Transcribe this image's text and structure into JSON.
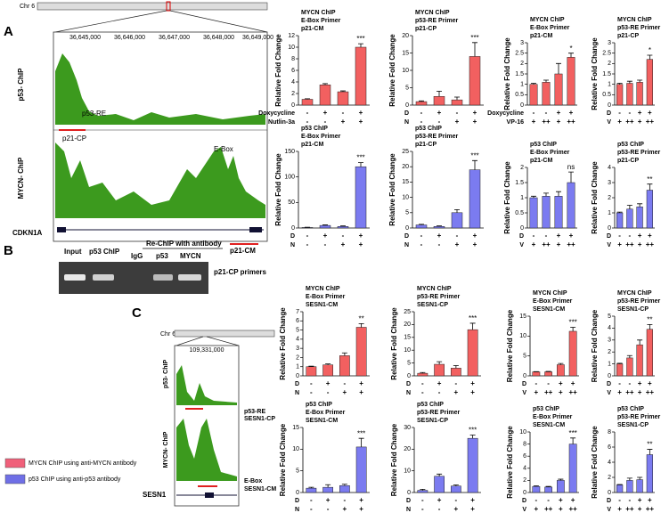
{
  "figure": {
    "panel_labels": [
      "A",
      "B",
      "C"
    ],
    "browser_a": {
      "chrom": "Chr 6",
      "coords": [
        "36,645,000",
        "36,646,000",
        "36,647,000",
        "36,648,000",
        "36,649,000"
      ],
      "tracks": [
        "p53- ChIP",
        "MYCN- ChIP"
      ],
      "features": [
        "p53-RE",
        "p21-CP",
        "E-Box",
        "p21-CM"
      ],
      "gene": "CDKN1A"
    },
    "gel": {
      "lanes": [
        "Input",
        "p53 ChIP",
        "IgG",
        "p53",
        "MYCN"
      ],
      "group": "Re-ChIP with antibody",
      "primer": "p21-CP primers"
    },
    "browser_c": {
      "chrom": "Chr 6",
      "coords": [
        "109,331,000"
      ],
      "tracks": [
        "p53- ChIP",
        "MYCN- ChIP"
      ],
      "features": [
        "p53-RE",
        "SESN1-CP",
        "E-Box",
        "SESN1-CM"
      ],
      "gene": "SESN1"
    },
    "legend": [
      {
        "label": "MYCN ChIP using anti-MYCN antibody",
        "color": "#f0607a"
      },
      {
        "label": "p53 ChIP using anti-p53 antibody",
        "color": "#6f6fe6"
      }
    ]
  },
  "chart_data": [
    {
      "type": "bar",
      "title": [
        "MYCN ChIP",
        "E-Box Primer",
        "p21-CM"
      ],
      "y_label": "Relative Fold Change",
      "values": [
        1,
        3.5,
        2.3,
        10
      ],
      "errors": [
        0.1,
        0.2,
        0.15,
        0.6
      ],
      "color": "#f26060",
      "ylim": [
        0,
        12
      ],
      "yticks": [
        0,
        2,
        4,
        6,
        8,
        10,
        12
      ],
      "annotation": "***",
      "conditions": [
        {
          "name": "Doxycycline",
          "labels": [
            "-",
            "+",
            "-",
            "+"
          ]
        },
        {
          "name": "Nutlin-3a",
          "labels": [
            "-",
            "-",
            "+",
            "+"
          ]
        }
      ]
    },
    {
      "type": "bar",
      "title": [
        "MYCN ChIP",
        "p53-RE Primer",
        "p21-CP"
      ],
      "y_label": "Relative Fold Change",
      "values": [
        1,
        2.5,
        1.5,
        14
      ],
      "errors": [
        0.2,
        1.5,
        0.8,
        4
      ],
      "color": "#f26060",
      "ylim": [
        0,
        20
      ],
      "yticks": [
        0,
        5,
        10,
        15,
        20
      ],
      "annotation": "***",
      "conditions": [
        {
          "name": "D",
          "labels": [
            "-",
            "+",
            "-",
            "+"
          ]
        },
        {
          "name": "N",
          "labels": [
            "-",
            "-",
            "+",
            "+"
          ]
        }
      ]
    },
    {
      "type": "bar",
      "title": [
        "MYCN ChIP",
        "E-Box Primer",
        "p21-CM"
      ],
      "y_label": "Relative Fold Change",
      "values": [
        1,
        1.1,
        1.5,
        2.3
      ],
      "errors": [
        0.05,
        0.1,
        0.5,
        0.2
      ],
      "color": "#f26060",
      "ylim": [
        0,
        3
      ],
      "yticks": [
        0,
        0.5,
        1,
        1.5,
        2,
        2.5,
        3
      ],
      "annotation": "*",
      "conditions": [
        {
          "name": "Doxycycline",
          "labels": [
            "-",
            "-",
            "+",
            "+"
          ]
        },
        {
          "name": "VP-16",
          "labels": [
            "+",
            "++",
            "+",
            "++"
          ]
        }
      ]
    },
    {
      "type": "bar",
      "title": [
        "MYCN ChIP",
        "p53-RE Primer",
        "p21-CP"
      ],
      "y_label": "Relative Fold Change",
      "values": [
        1,
        1.05,
        1.1,
        2.2
      ],
      "errors": [
        0.05,
        0.1,
        0.1,
        0.2
      ],
      "color": "#f26060",
      "ylim": [
        0,
        3
      ],
      "yticks": [
        0,
        0.5,
        1,
        1.5,
        2,
        2.5,
        3
      ],
      "annotation": "*",
      "conditions": [
        {
          "name": "D",
          "labels": [
            "-",
            "-",
            "+",
            "+"
          ]
        },
        {
          "name": "V",
          "labels": [
            "+",
            "++",
            "+",
            "++"
          ]
        }
      ]
    },
    {
      "type": "bar",
      "title": [
        "p53 ChIP",
        "E-Box Primer",
        "p21-CM"
      ],
      "y_label": "Relative Fold Change",
      "values": [
        1,
        5,
        3,
        120
      ],
      "errors": [
        0.5,
        1,
        1,
        8
      ],
      "color": "#7b7bf0",
      "ylim": [
        0,
        150
      ],
      "yticks": [
        0,
        50,
        100,
        150
      ],
      "annotation": "***",
      "conditions": [
        {
          "name": "D",
          "labels": [
            "-",
            "+",
            "-",
            "+"
          ]
        },
        {
          "name": "N",
          "labels": [
            "-",
            "-",
            "+",
            "+"
          ]
        }
      ]
    },
    {
      "type": "bar",
      "title": [
        "p53 ChIP",
        "p53-RE Primer",
        "p21-CP"
      ],
      "y_label": "Relative Fold Change",
      "values": [
        1,
        0.5,
        5,
        19
      ],
      "errors": [
        0.2,
        0.2,
        1,
        3
      ],
      "color": "#7b7bf0",
      "ylim": [
        0,
        25
      ],
      "yticks": [
        0,
        5,
        10,
        15,
        20,
        25
      ],
      "annotation": "***",
      "conditions": [
        {
          "name": "D",
          "labels": [
            "-",
            "+",
            "-",
            "+"
          ]
        },
        {
          "name": "N",
          "labels": [
            "-",
            "-",
            "+",
            "+"
          ]
        }
      ]
    },
    {
      "type": "bar",
      "title": [
        "p53 ChIP",
        "E-Box Primer",
        "p21-CM"
      ],
      "y_label": "Relative Fold Change",
      "values": [
        1,
        1.05,
        1.05,
        1.5
      ],
      "errors": [
        0.05,
        0.1,
        0.15,
        0.35
      ],
      "color": "#7b7bf0",
      "ylim": [
        0,
        2
      ],
      "yticks": [
        0,
        0.5,
        1,
        1.5,
        2
      ],
      "annotation": "ns",
      "conditions": [
        {
          "name": "D",
          "labels": [
            "-",
            "-",
            "+",
            "+"
          ]
        },
        {
          "name": "V",
          "labels": [
            "+",
            "++",
            "+",
            "++"
          ]
        }
      ]
    },
    {
      "type": "bar",
      "title": [
        "p53 ChIP",
        "p53-RE Primer",
        "p21-CP"
      ],
      "y_label": "Relative Fold Change",
      "values": [
        1,
        1.25,
        1.4,
        2.5
      ],
      "errors": [
        0.05,
        0.25,
        0.2,
        0.4
      ],
      "color": "#7b7bf0",
      "ylim": [
        0,
        4
      ],
      "yticks": [
        0,
        1,
        2,
        3,
        4
      ],
      "annotation": "**",
      "conditions": [
        {
          "name": "D",
          "labels": [
            "-",
            "-",
            "+",
            "+"
          ]
        },
        {
          "name": "V",
          "labels": [
            "+",
            "++",
            "+",
            "++"
          ]
        }
      ]
    },
    {
      "type": "bar",
      "title": [
        "MYCN ChIP",
        "E-Box Primer",
        "SESN1-CM"
      ],
      "y_label": "Relative Fold Change",
      "values": [
        1,
        1.2,
        2.2,
        5.3
      ],
      "errors": [
        0.05,
        0.1,
        0.3,
        0.4
      ],
      "color": "#f26060",
      "ylim": [
        0,
        7
      ],
      "yticks": [
        0,
        1,
        2,
        3,
        4,
        5,
        6,
        7
      ],
      "annotation": "**",
      "conditions": [
        {
          "name": "D",
          "labels": [
            "-",
            "+",
            "-",
            "+"
          ]
        },
        {
          "name": "N",
          "labels": [
            "-",
            "-",
            "+",
            "+"
          ]
        }
      ]
    },
    {
      "type": "bar",
      "title": [
        "MYCN ChIP",
        "p53-RE Primer",
        "SESN1-CP"
      ],
      "y_label": "Relative Fold Change",
      "values": [
        1,
        4.5,
        3,
        18
      ],
      "errors": [
        0.3,
        1,
        1,
        2.5
      ],
      "color": "#f26060",
      "ylim": [
        0,
        25
      ],
      "yticks": [
        0,
        5,
        10,
        15,
        20,
        25
      ],
      "annotation": "***",
      "conditions": [
        {
          "name": "D",
          "labels": [
            "-",
            "+",
            "-",
            "+"
          ]
        },
        {
          "name": "N",
          "labels": [
            "-",
            "-",
            "+",
            "+"
          ]
        }
      ]
    },
    {
      "type": "bar",
      "title": [
        "MYCN ChIP",
        "E-Box Primer",
        "SESN1-CM"
      ],
      "y_label": "Relative Fold Change",
      "values": [
        1,
        1,
        2.8,
        11.2
      ],
      "errors": [
        0.05,
        0.1,
        0.3,
        1
      ],
      "color": "#f26060",
      "ylim": [
        0,
        15
      ],
      "yticks": [
        0,
        5,
        10,
        15
      ],
      "annotation": "***",
      "conditions": [
        {
          "name": "D",
          "labels": [
            "-",
            "-",
            "+",
            "+"
          ]
        },
        {
          "name": "V",
          "labels": [
            "+",
            "++",
            "+",
            "++"
          ]
        }
      ]
    },
    {
      "type": "bar",
      "title": [
        "MYCN ChIP",
        "p53-RE Primer",
        "SESN1-CP"
      ],
      "y_label": "Relative Fold Change",
      "values": [
        1,
        1.5,
        2.6,
        3.9
      ],
      "errors": [
        0.05,
        0.2,
        0.4,
        0.4
      ],
      "color": "#f26060",
      "ylim": [
        0,
        5
      ],
      "yticks": [
        0,
        1,
        2,
        3,
        4,
        5
      ],
      "annotation": "**",
      "conditions": [
        {
          "name": "D",
          "labels": [
            "-",
            "-",
            "+",
            "+"
          ]
        },
        {
          "name": "V",
          "labels": [
            "+",
            "++",
            "+",
            "++"
          ]
        }
      ]
    },
    {
      "type": "bar",
      "title": [
        "p53 ChIP",
        "E-Box Primer",
        "SESN1-CM"
      ],
      "y_label": "Relative Fold Change",
      "values": [
        1,
        1.2,
        1.6,
        10.5
      ],
      "errors": [
        0.2,
        0.6,
        0.3,
        2
      ],
      "color": "#7b7bf0",
      "ylim": [
        0,
        15
      ],
      "yticks": [
        0,
        5,
        10,
        15
      ],
      "annotation": "***",
      "conditions": [
        {
          "name": "D",
          "labels": [
            "-",
            "+",
            "-",
            "+"
          ]
        },
        {
          "name": "N",
          "labels": [
            "-",
            "-",
            "+",
            "+"
          ]
        }
      ]
    },
    {
      "type": "bar",
      "title": [
        "p53 ChIP",
        "p53-RE Primer",
        "SESN1-CP"
      ],
      "y_label": "Relative Fold Change",
      "values": [
        1,
        7.5,
        3,
        25
      ],
      "errors": [
        0.5,
        1,
        0.5,
        1.5
      ],
      "color": "#7b7bf0",
      "ylim": [
        0,
        30
      ],
      "yticks": [
        0,
        10,
        20,
        30
      ],
      "annotation": "***",
      "conditions": [
        {
          "name": "D",
          "labels": [
            "-",
            "+",
            "-",
            "+"
          ]
        },
        {
          "name": "N",
          "labels": [
            "-",
            "-",
            "+",
            "+"
          ]
        }
      ]
    },
    {
      "type": "bar",
      "title": [
        "p53 ChIP",
        "E-Box Primer",
        "SESN1-CM"
      ],
      "y_label": "Relative Fold Change",
      "values": [
        1,
        0.9,
        2,
        8
      ],
      "errors": [
        0.1,
        0.1,
        0.2,
        1
      ],
      "color": "#7b7bf0",
      "ylim": [
        0,
        10
      ],
      "yticks": [
        0,
        2,
        4,
        6,
        8,
        10
      ],
      "annotation": "***",
      "conditions": [
        {
          "name": "D",
          "labels": [
            "-",
            "-",
            "+",
            "+"
          ]
        },
        {
          "name": "V",
          "labels": [
            "+",
            "++",
            "+",
            "++"
          ]
        }
      ]
    },
    {
      "type": "bar",
      "title": [
        "p53 ChIP",
        "p53-RE Primer",
        "SESN1-CP"
      ],
      "y_label": "Relative Fold Change",
      "values": [
        1,
        1.6,
        1.7,
        5
      ],
      "errors": [
        0.05,
        0.3,
        0.3,
        0.7
      ],
      "color": "#7b7bf0",
      "ylim": [
        0,
        8
      ],
      "yticks": [
        0,
        2,
        4,
        6,
        8
      ],
      "annotation": "**",
      "conditions": [
        {
          "name": "D",
          "labels": [
            "-",
            "-",
            "+",
            "+"
          ]
        },
        {
          "name": "V",
          "labels": [
            "+",
            "++",
            "+",
            "++"
          ]
        }
      ]
    }
  ]
}
